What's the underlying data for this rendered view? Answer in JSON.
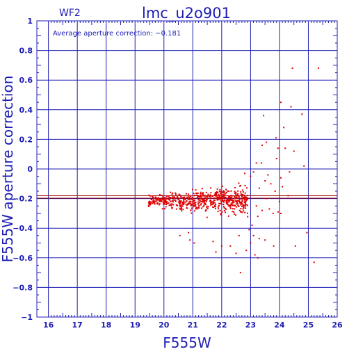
{
  "chart_data": {
    "type": "scatter",
    "title": "lmc_u2o901",
    "chip_label": "WF2",
    "annotation": "Average aperture correction: −0.181",
    "xlabel": "F555W",
    "ylabel": "F555W aperture correction",
    "xlim": [
      15.6,
      26
    ],
    "ylim": [
      -1,
      1
    ],
    "x_ticks": [
      16,
      17,
      18,
      19,
      20,
      21,
      22,
      23,
      24,
      25,
      26
    ],
    "y_ticks": [
      1,
      0.8,
      0.6,
      0.4,
      0.2,
      0,
      -0.2,
      -0.4,
      -0.6,
      -0.8,
      -1
    ],
    "x_tick_labels": [
      "16",
      "17",
      "18",
      "19",
      "20",
      "21",
      "22",
      "23",
      "24",
      "25",
      "26"
    ],
    "y_tick_labels": [
      "1",
      "0.8",
      "0.6",
      "0.4",
      "0.2",
      "0",
      "−0.2",
      "−0.4",
      "−0.6",
      "−0.8",
      "−1"
    ],
    "grid": true,
    "reference_lines": [
      -0.181,
      -0.197
    ],
    "colors": {
      "axes": "#1c1cb4",
      "points": "#e00000",
      "ref_lines": "#a01010"
    },
    "points": [
      [
        24.45,
        0.68
      ],
      [
        25.35,
        0.68
      ],
      [
        24.05,
        0.45
      ],
      [
        24.4,
        0.42
      ],
      [
        24.78,
        0.37
      ],
      [
        23.45,
        0.36
      ],
      [
        24.15,
        0.28
      ],
      [
        23.88,
        0.21
      ],
      [
        23.55,
        0.18
      ],
      [
        23.4,
        0.16
      ],
      [
        23.95,
        0.14
      ],
      [
        24.2,
        0.14
      ],
      [
        24.5,
        0.12
      ],
      [
        23.9,
        0.07
      ],
      [
        24.85,
        0.02
      ],
      [
        23.2,
        0.04
      ],
      [
        23.38,
        0.04
      ],
      [
        24.35,
        -0.02
      ],
      [
        23.0,
        -0.05
      ],
      [
        23.6,
        -0.04
      ],
      [
        24.05,
        -0.06
      ],
      [
        22.8,
        -0.03
      ],
      [
        23.1,
        -0.02
      ],
      [
        23.5,
        -0.08
      ],
      [
        23.7,
        -0.1
      ],
      [
        24.1,
        -0.12
      ],
      [
        23.3,
        -0.13
      ],
      [
        23.85,
        -0.15
      ],
      [
        24.3,
        -0.18
      ],
      [
        23.55,
        -0.2
      ],
      [
        24.0,
        -0.22
      ],
      [
        23.2,
        -0.25
      ],
      [
        23.65,
        -0.27
      ],
      [
        23.4,
        -0.28
      ],
      [
        23.95,
        -0.29
      ],
      [
        23.78,
        -0.3
      ],
      [
        24.05,
        -0.3
      ],
      [
        23.25,
        -0.32
      ],
      [
        23.05,
        -0.38
      ],
      [
        22.95,
        -0.41
      ],
      [
        23.1,
        -0.45
      ],
      [
        23.3,
        -0.47
      ],
      [
        23.5,
        -0.48
      ],
      [
        23.0,
        -0.5
      ],
      [
        22.6,
        -0.45
      ],
      [
        22.85,
        -0.55
      ],
      [
        23.15,
        -0.58
      ],
      [
        23.25,
        -0.6
      ],
      [
        23.8,
        -0.52
      ],
      [
        24.55,
        -0.52
      ],
      [
        24.95,
        -0.43
      ],
      [
        22.3,
        -0.52
      ],
      [
        22.0,
        -0.52
      ],
      [
        21.7,
        -0.49
      ],
      [
        22.5,
        -0.57
      ],
      [
        22.65,
        -0.7
      ],
      [
        25.2,
        -0.63
      ],
      [
        21.05,
        -0.5
      ],
      [
        20.9,
        -0.48
      ],
      [
        20.55,
        -0.45
      ],
      [
        20.85,
        -0.43
      ],
      [
        21.8,
        -0.56
      ]
    ]
  }
}
